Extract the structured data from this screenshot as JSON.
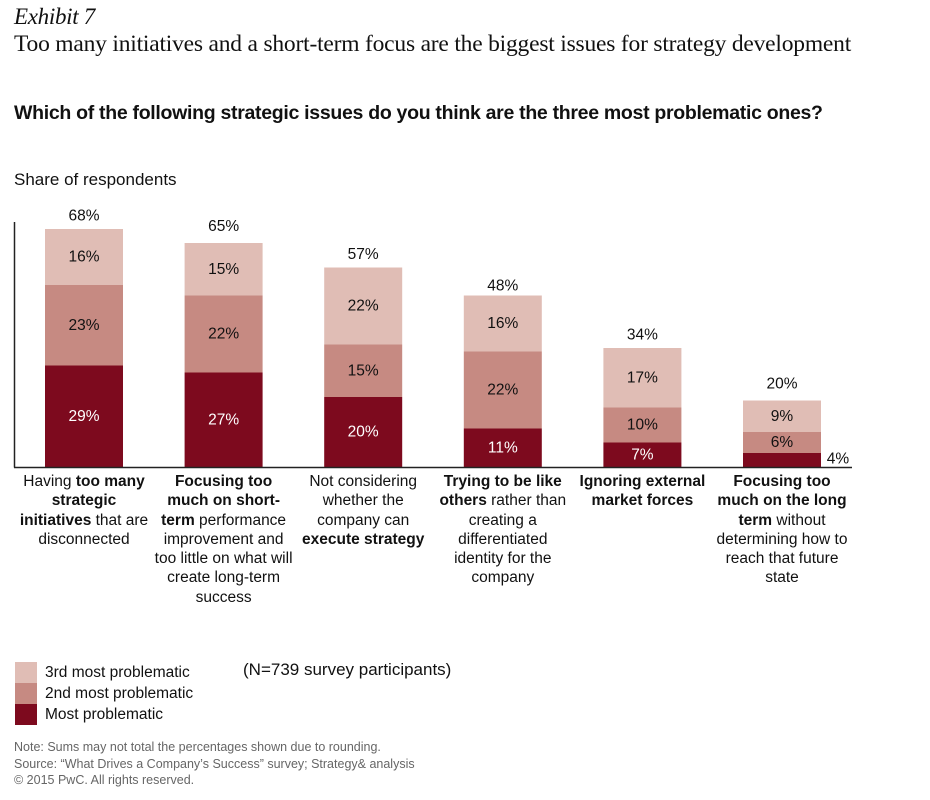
{
  "header": {
    "exhibit": "Exhibit 7",
    "title": "Too many initiatives and a short-term focus are the biggest issues for strategy development",
    "subtitle": "Which of the following strategic issues do you think are the three most problematic ones?"
  },
  "colors": {
    "most": "#7d0a1e",
    "second": "#c68a82",
    "third": "#e0bdb5",
    "axis": "#222222"
  },
  "chart_data": {
    "type": "bar",
    "stacked": true,
    "title": "Which of the following strategic issues do you think are the three most problematic ones?",
    "xlabel": "",
    "ylabel": "Share of respondents",
    "ylim": [
      0,
      70
    ],
    "grid": false,
    "legend_position": "bottom-left",
    "categories": [
      [
        {
          "t": "Having ",
          "b": false
        },
        {
          "t": "too many strategic initiatives",
          "b": true
        },
        {
          "t": " that are disconnected",
          "b": false
        }
      ],
      [
        {
          "t": "Focusing too much on short-term",
          "b": true
        },
        {
          "t": " performance improvement and too little on what will create long-term success",
          "b": false
        }
      ],
      [
        {
          "t": "Not considering whether the company can ",
          "b": false
        },
        {
          "t": "execute strategy",
          "b": true
        }
      ],
      [
        {
          "t": "Trying to be like others",
          "b": true
        },
        {
          "t": " rather than creating a differentiated identity for the company",
          "b": false
        }
      ],
      [
        {
          "t": "Ignoring external market forces",
          "b": true
        }
      ],
      [
        {
          "t": "Focusing too much on the long term",
          "b": true
        },
        {
          "t": " without determining how to reach that future state",
          "b": false
        }
      ]
    ],
    "category_names": [
      "Having too many strategic initiatives that are disconnected",
      "Focusing too much on short-term performance improvement and too little on what will create long-term success",
      "Not considering whether the company can execute strategy",
      "Trying to be like others rather than creating a differentiated identity for the company",
      "Ignoring external market forces",
      "Focusing too much on the long term without determining how to reach that future state"
    ],
    "series": [
      {
        "name": "Most problematic",
        "color_key": "most",
        "values": [
          29,
          27,
          20,
          11,
          7,
          4
        ],
        "labels": [
          "29%",
          "27%",
          "20%",
          "11%",
          "7%",
          "4%"
        ]
      },
      {
        "name": "2nd most problematic",
        "color_key": "second",
        "values": [
          23,
          22,
          15,
          22,
          10,
          6
        ],
        "labels": [
          "23%",
          "22%",
          "15%",
          "22%",
          "10%",
          "6%"
        ]
      },
      {
        "name": "3rd most problematic",
        "color_key": "third",
        "values": [
          16,
          15,
          22,
          16,
          17,
          9
        ],
        "labels": [
          "16%",
          "15%",
          "22%",
          "16%",
          "17%",
          "9%"
        ]
      }
    ],
    "totals": [
      68,
      65,
      57,
      48,
      34,
      20
    ],
    "total_labels": [
      "68%",
      "65%",
      "57%",
      "48%",
      "34%",
      "20%"
    ]
  },
  "legend": {
    "items": [
      {
        "label": "3rd most problematic",
        "color_key": "third"
      },
      {
        "label": "2nd most problematic",
        "color_key": "second"
      },
      {
        "label": "Most problematic",
        "color_key": "most"
      }
    ]
  },
  "sample_note": "(N=739 survey participants)",
  "footnotes": {
    "note": "Note: Sums may not total the percentages shown due to rounding.",
    "source": "Source: “What Drives a Company’s Success” survey; Strategy& analysis",
    "copyright": "© 2015 PwC. All rights reserved."
  }
}
